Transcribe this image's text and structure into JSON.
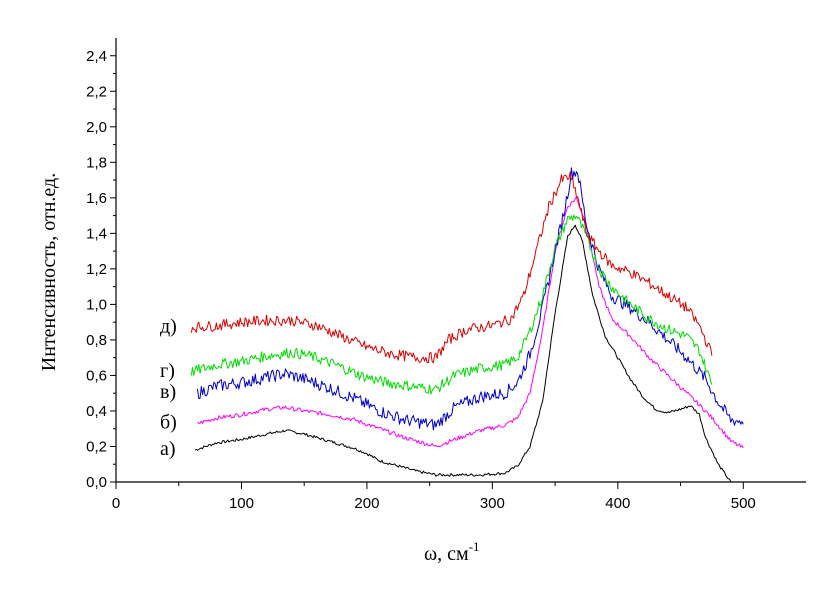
{
  "chart_data": {
    "type": "line",
    "title": "",
    "xlabel_main": "ω, см",
    "xlabel_sup": "-1",
    "ylabel": "Интенсивность, отн.ед.",
    "xlim": [
      0,
      550
    ],
    "ylim": [
      0,
      2.5
    ],
    "x_ticks": [
      0,
      100,
      200,
      300,
      400,
      500
    ],
    "x_tick_labels": [
      "0",
      "100",
      "200",
      "300",
      "400",
      "500"
    ],
    "y_ticks": [
      0,
      0.2,
      0.4,
      0.6,
      0.8,
      1.0,
      1.2,
      1.4,
      1.6,
      1.8,
      2.0,
      2.2,
      2.4
    ],
    "y_tick_labels": [
      "0,0",
      "0,2",
      "0,4",
      "0,6",
      "0,8",
      "1,0",
      "1,2",
      "1,4",
      "1,6",
      "1,8",
      "2,0",
      "2,2",
      "2,4"
    ],
    "grid": false,
    "series": [
      {
        "name": "а)",
        "color": "#000000",
        "x": [
          63,
          80,
          100,
          120,
          135,
          150,
          170,
          190,
          200,
          210,
          220,
          240,
          255,
          270,
          290,
          310,
          320,
          330,
          340,
          350,
          360,
          366,
          372,
          380,
          390,
          400,
          410,
          420,
          430,
          440,
          450,
          458,
          465,
          470,
          480,
          490
        ],
        "y": [
          0.18,
          0.22,
          0.24,
          0.27,
          0.29,
          0.27,
          0.23,
          0.19,
          0.16,
          0.12,
          0.1,
          0.06,
          0.04,
          0.04,
          0.04,
          0.05,
          0.09,
          0.2,
          0.45,
          0.95,
          1.38,
          1.45,
          1.35,
          1.05,
          0.82,
          0.7,
          0.58,
          0.48,
          0.41,
          0.39,
          0.41,
          0.43,
          0.38,
          0.25,
          0.1,
          0.0
        ]
      },
      {
        "name": "б)",
        "color": "#ff00ff",
        "x": [
          65,
          80,
          100,
          120,
          135,
          150,
          170,
          190,
          210,
          230,
          255,
          270,
          290,
          310,
          320,
          330,
          340,
          350,
          360,
          367,
          375,
          385,
          395,
          410,
          425,
          440,
          455,
          470,
          480,
          490,
          500
        ],
        "y": [
          0.33,
          0.36,
          0.38,
          0.41,
          0.42,
          0.4,
          0.38,
          0.35,
          0.3,
          0.25,
          0.2,
          0.24,
          0.29,
          0.32,
          0.36,
          0.5,
          0.85,
          1.3,
          1.55,
          1.6,
          1.45,
          1.1,
          0.92,
          0.82,
          0.7,
          0.6,
          0.5,
          0.4,
          0.32,
          0.23,
          0.19
        ]
      },
      {
        "name": "в)",
        "color": "#0000cc",
        "x": [
          65,
          80,
          100,
          120,
          135,
          150,
          170,
          190,
          210,
          230,
          255,
          270,
          290,
          310,
          320,
          330,
          340,
          350,
          358,
          363,
          368,
          375,
          385,
          395,
          410,
          425,
          440,
          455,
          470,
          480,
          490,
          500
        ],
        "y": [
          0.5,
          0.54,
          0.56,
          0.59,
          0.61,
          0.58,
          0.53,
          0.47,
          0.4,
          0.35,
          0.32,
          0.42,
          0.48,
          0.5,
          0.56,
          0.72,
          0.98,
          1.3,
          1.55,
          1.74,
          1.75,
          1.45,
          1.2,
          1.05,
          0.98,
          0.9,
          0.8,
          0.7,
          0.58,
          0.45,
          0.35,
          0.34
        ]
      },
      {
        "name": "г)",
        "color": "#00dd00",
        "x": [
          60,
          80,
          100,
          120,
          140,
          155,
          175,
          195,
          215,
          235,
          255,
          270,
          290,
          310,
          320,
          330,
          340,
          350,
          360,
          367,
          375,
          385,
          395,
          410,
          425,
          440,
          455,
          465,
          475
        ],
        "y": [
          0.62,
          0.66,
          0.68,
          0.71,
          0.73,
          0.71,
          0.66,
          0.6,
          0.56,
          0.54,
          0.52,
          0.6,
          0.64,
          0.66,
          0.7,
          0.85,
          1.05,
          1.32,
          1.48,
          1.5,
          1.38,
          1.2,
          1.1,
          1.0,
          0.92,
          0.86,
          0.82,
          0.74,
          0.55
        ]
      },
      {
        "name": "д)",
        "color": "#dd0000",
        "x": [
          60,
          80,
          100,
          120,
          140,
          160,
          180,
          200,
          220,
          240,
          255,
          265,
          280,
          300,
          315,
          325,
          335,
          345,
          355,
          362,
          368,
          375,
          385,
          395,
          410,
          425,
          440,
          455,
          465,
          475
        ],
        "y": [
          0.87,
          0.88,
          0.9,
          0.91,
          0.91,
          0.88,
          0.82,
          0.76,
          0.72,
          0.7,
          0.7,
          0.8,
          0.86,
          0.88,
          0.92,
          1.05,
          1.3,
          1.55,
          1.7,
          1.72,
          1.6,
          1.4,
          1.3,
          1.22,
          1.18,
          1.12,
          1.05,
          0.98,
          0.88,
          0.72
        ]
      }
    ]
  }
}
